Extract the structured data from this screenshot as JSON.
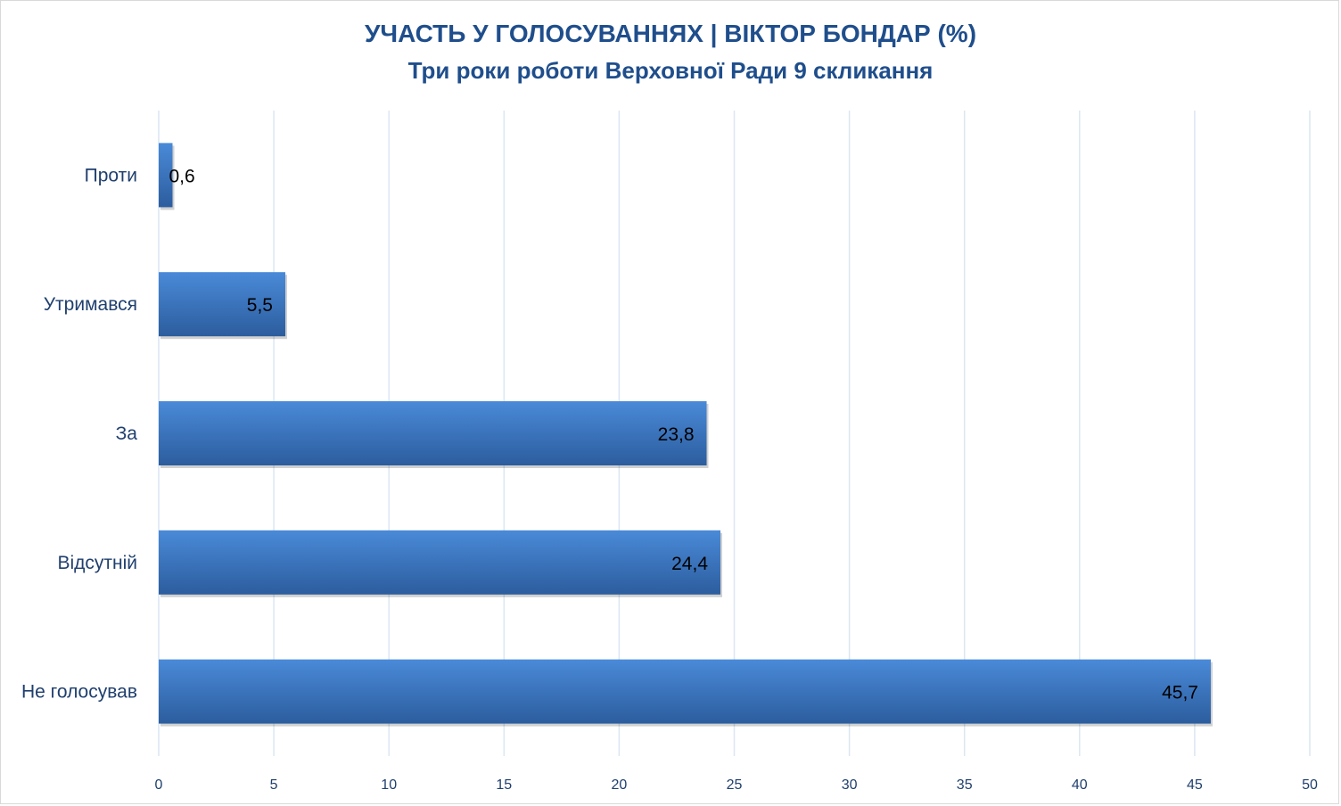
{
  "chart_data": {
    "type": "bar",
    "orientation": "horizontal",
    "title": "УЧАСТЬ У ГОЛОСУВАННЯХ | ВІКТОР БОНДАР (%)",
    "subtitle": "Три роки роботи Верховної Ради 9 скликання",
    "categories": [
      "Проти",
      "Утримався",
      "За",
      "Відсутній",
      "Не голосував"
    ],
    "values": [
      0.6,
      5.5,
      23.8,
      24.4,
      45.7
    ],
    "value_labels": [
      "0,6",
      "5,5",
      "23,8",
      "24,4",
      "45,7"
    ],
    "xlim": [
      0,
      50
    ],
    "ticks": [
      0,
      5,
      10,
      15,
      20,
      25,
      30,
      35,
      40,
      45,
      50
    ],
    "grid": true,
    "legend": "none",
    "colors": {
      "bar_top": "#4a8ad8",
      "bar_bottom": "#2c5d9e",
      "grid": "#dce6f2",
      "text": "#1f4e8c"
    }
  }
}
